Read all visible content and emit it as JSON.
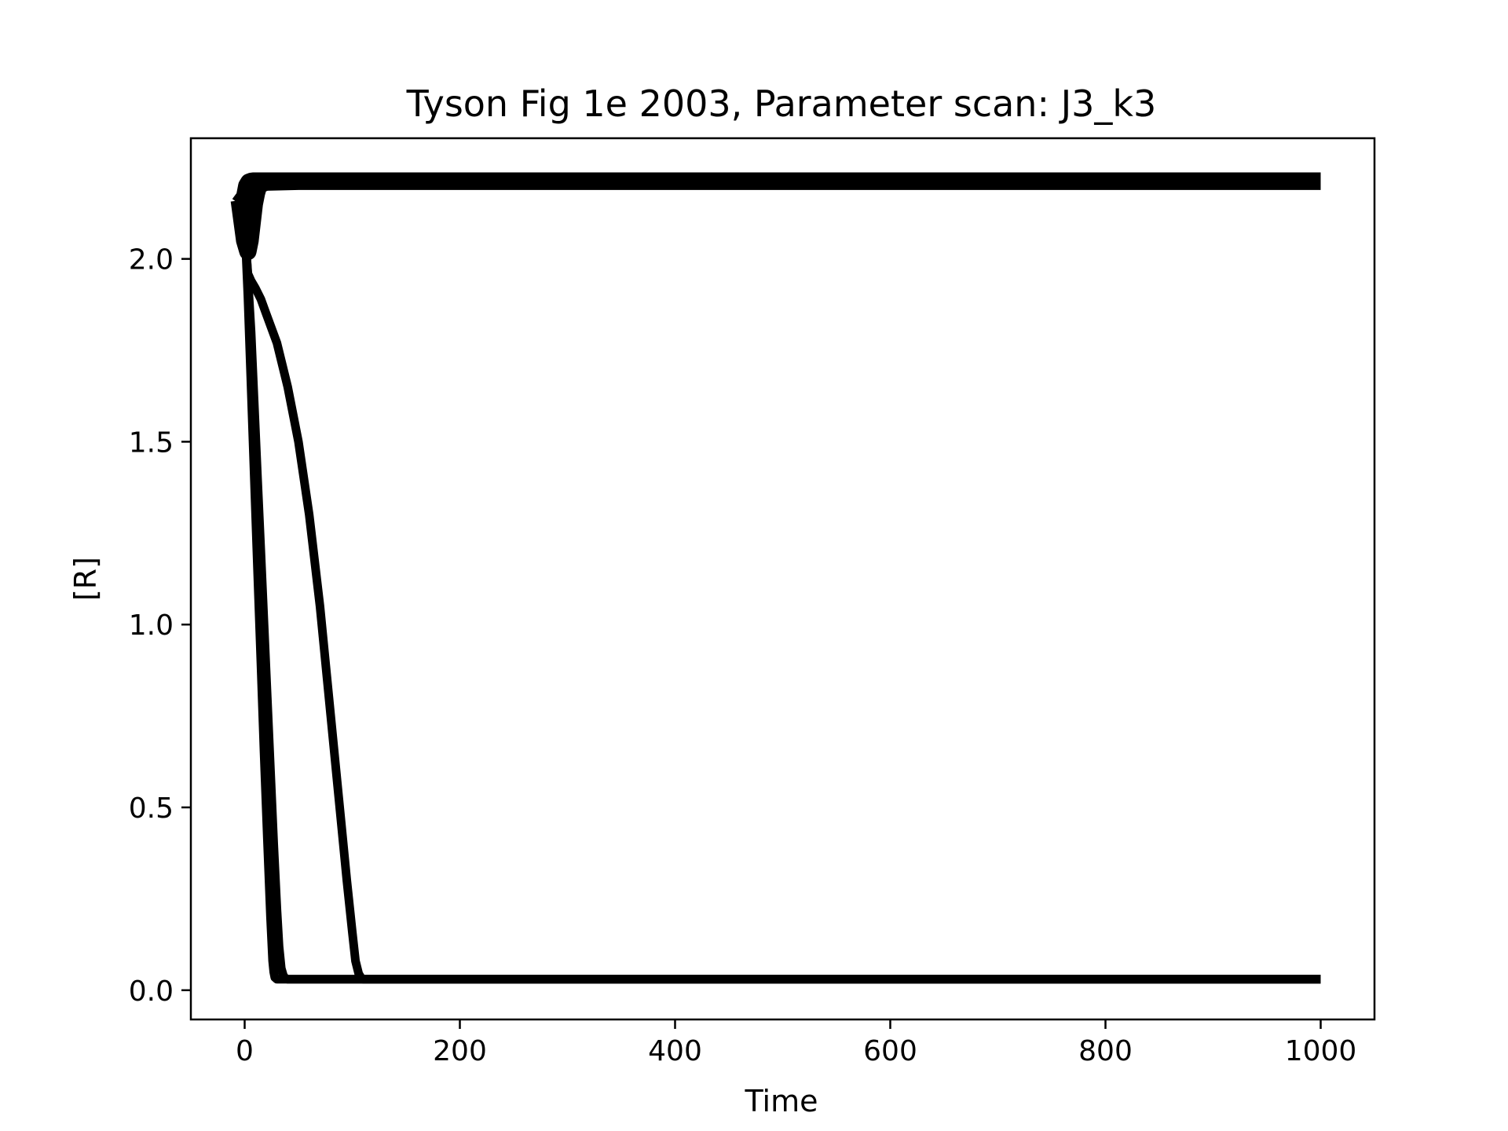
{
  "chart_data": {
    "type": "line",
    "title": "Tyson Fig 1e 2003, Parameter scan: J3_k3",
    "xlabel": "Time",
    "ylabel": "[R]",
    "xlim": [
      -50,
      1050
    ],
    "ylim": [
      -0.08,
      2.33
    ],
    "xticks": [
      0,
      200,
      400,
      600,
      800,
      1000
    ],
    "xtick_labels": [
      "0",
      "200",
      "400",
      "600",
      "800",
      "1000"
    ],
    "yticks": [
      0.0,
      0.5,
      1.0,
      1.5,
      2.0
    ],
    "ytick_labels": [
      "0.0",
      "0.5",
      "1.0",
      "1.5",
      "2.0"
    ],
    "grid": false,
    "legend": "none",
    "line_color": "#000000",
    "series": [
      {
        "x": [
          -5,
          0,
          2,
          4,
          6,
          8,
          10,
          15,
          20,
          50,
          200,
          1000
        ],
        "y": [
          2.15,
          2.17,
          2.2,
          2.21,
          2.212,
          2.213,
          2.213,
          2.213,
          2.213,
          2.213,
          2.213,
          2.213
        ]
      },
      {
        "x": [
          -5,
          0,
          2,
          4,
          6,
          8,
          10,
          15,
          50,
          200,
          1000
        ],
        "y": [
          2.15,
          2.16,
          2.19,
          2.205,
          2.21,
          2.212,
          2.213,
          2.213,
          2.213,
          2.213,
          2.213
        ]
      },
      {
        "x": [
          -5,
          0,
          2,
          4,
          6,
          8,
          10,
          12,
          15,
          50,
          200,
          1000
        ],
        "y": [
          2.15,
          2.15,
          2.17,
          2.19,
          2.2,
          2.205,
          2.208,
          2.21,
          2.212,
          2.213,
          2.213,
          2.213
        ]
      },
      {
        "x": [
          -5,
          0,
          3,
          5,
          7,
          9,
          11,
          13,
          15,
          20,
          50,
          1000
        ],
        "y": [
          2.16,
          2.05,
          2.02,
          2.05,
          2.1,
          2.15,
          2.18,
          2.2,
          2.205,
          2.21,
          2.212,
          2.212
        ]
      },
      {
        "x": [
          -5,
          0,
          3,
          6,
          9,
          12,
          15,
          18,
          21,
          24,
          26,
          27,
          28,
          30,
          32,
          35,
          40,
          60,
          200,
          1000
        ],
        "y": [
          2.15,
          2.1,
          1.9,
          1.65,
          1.4,
          1.15,
          0.9,
          0.65,
          0.42,
          0.2,
          0.08,
          0.05,
          0.035,
          0.03,
          0.03,
          0.03,
          0.03,
          0.03,
          0.03,
          0.03
        ]
      },
      {
        "x": [
          -5,
          0,
          3,
          6,
          9,
          12,
          15,
          18,
          21,
          24,
          27,
          30,
          32,
          34,
          36,
          38,
          40,
          45,
          60,
          200,
          1000
        ],
        "y": [
          2.15,
          2.1,
          1.95,
          1.8,
          1.6,
          1.4,
          1.2,
          1.0,
          0.8,
          0.6,
          0.4,
          0.22,
          0.12,
          0.06,
          0.04,
          0.032,
          0.03,
          0.03,
          0.03,
          0.03,
          0.03
        ]
      },
      {
        "x": [
          -5,
          0,
          3,
          6,
          10,
          15,
          20,
          30,
          40,
          50,
          60,
          70,
          80,
          90,
          95,
          100,
          103,
          106,
          108,
          110,
          115,
          130,
          200,
          1000
        ],
        "y": [
          2.15,
          2.08,
          1.96,
          1.94,
          1.92,
          1.89,
          1.85,
          1.77,
          1.65,
          1.5,
          1.3,
          1.05,
          0.75,
          0.45,
          0.3,
          0.16,
          0.08,
          0.045,
          0.035,
          0.03,
          0.03,
          0.03,
          0.03,
          0.03
        ]
      }
    ]
  }
}
